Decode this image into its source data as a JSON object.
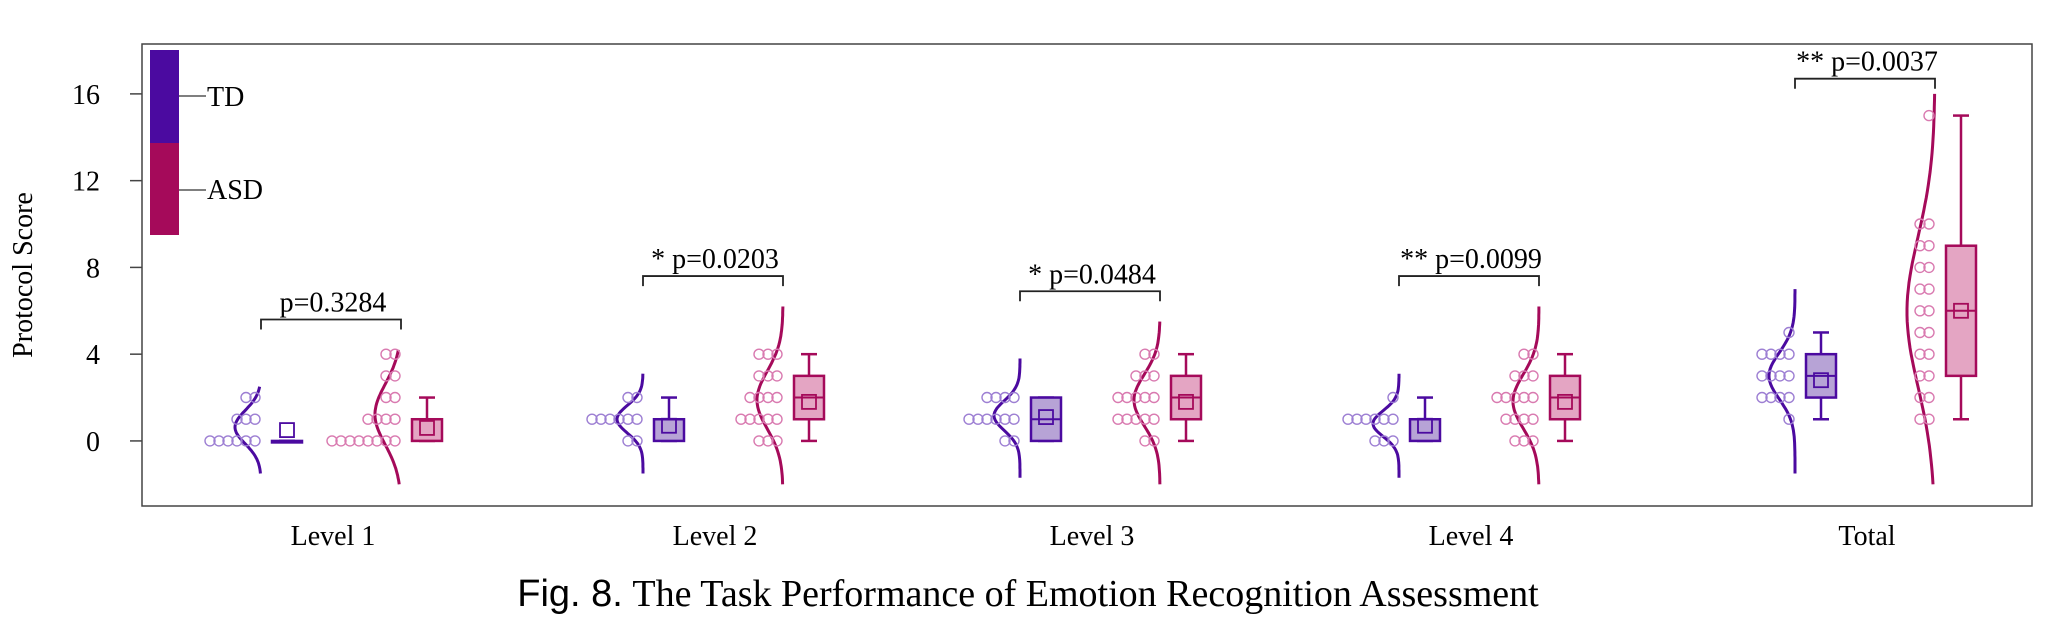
{
  "colors": {
    "td": "#4b0aa0",
    "asd": "#a50a5a",
    "td_fill": "#b7a3d6",
    "asd_fill": "#e4a5c3",
    "td_point": "#9d7fd3",
    "asd_point": "#d97ab0"
  },
  "caption": {
    "label": "Fig. 8.",
    "title": "The Task Performance of Emotion Recognition Assessment"
  },
  "chart_data": {
    "type": "box-violin",
    "ylabel": "Protocol Score",
    "xlabel": "",
    "ylim": [
      -3,
      18.3
    ],
    "yticks": [
      0,
      4,
      8,
      12,
      16
    ],
    "legend": {
      "placement": "top-left",
      "entries": [
        "TD",
        "ASD"
      ]
    },
    "grid": false,
    "categories": [
      "Level 1",
      "Level 2",
      "Level 3",
      "Level 4",
      "Total"
    ],
    "significance": [
      "p=0.3284",
      "* p=0.0203",
      "* p=0.0484",
      "** p=0.0099",
      "** p=0.0037"
    ],
    "series": [
      {
        "name": "TD",
        "boxes": [
          {
            "min": 0,
            "q1": 0,
            "median": 0,
            "q3": 0,
            "max": 0,
            "mean": 0.5
          },
          {
            "min": 0,
            "q1": 0,
            "median": 1,
            "q3": 1,
            "max": 2,
            "mean": 0.7
          },
          {
            "min": 0,
            "q1": 0,
            "median": 1,
            "q3": 2,
            "max": 2,
            "mean": 1.1
          },
          {
            "min": 0,
            "q1": 0,
            "median": 1,
            "q3": 1,
            "max": 2,
            "mean": 0.7
          },
          {
            "min": 1,
            "q1": 2,
            "median": 3,
            "q3": 4,
            "max": 5,
            "mean": 2.8
          }
        ],
        "points": [
          [
            0,
            0,
            0,
            0,
            0,
            0,
            1,
            1,
            1,
            2,
            2
          ],
          [
            0,
            0,
            1,
            1,
            1,
            1,
            1,
            1,
            2,
            2
          ],
          [
            0,
            0,
            1,
            1,
            1,
            1,
            1,
            1,
            2,
            2,
            2,
            2
          ],
          [
            0,
            0,
            0,
            1,
            1,
            1,
            1,
            1,
            1,
            2
          ],
          [
            1,
            2,
            2,
            2,
            2,
            3,
            3,
            3,
            3,
            4,
            4,
            4,
            4,
            5
          ]
        ],
        "density_range": [
          [
            -1.5,
            2.5
          ],
          [
            -1.5,
            3.1
          ],
          [
            -1.7,
            3.8
          ],
          [
            -1.7,
            3.1
          ],
          [
            -1.5,
            7
          ]
        ]
      },
      {
        "name": "ASD",
        "boxes": [
          {
            "min": 0,
            "q1": 0,
            "median": 0,
            "q3": 1,
            "max": 2,
            "mean": 0.6
          },
          {
            "min": 0,
            "q1": 1,
            "median": 2,
            "q3": 3,
            "max": 4,
            "mean": 1.8
          },
          {
            "min": 0,
            "q1": 1,
            "median": 2,
            "q3": 3,
            "max": 4,
            "mean": 1.8
          },
          {
            "min": 0,
            "q1": 1,
            "median": 2,
            "q3": 3,
            "max": 4,
            "mean": 1.8
          },
          {
            "min": 1,
            "q1": 3,
            "median": 6,
            "q3": 9,
            "max": 15,
            "mean": 6
          }
        ],
        "points": [
          [
            0,
            0,
            0,
            0,
            0,
            0,
            0,
            0,
            1,
            1,
            1,
            1,
            2,
            2,
            3,
            3,
            4,
            4
          ],
          [
            0,
            0,
            0,
            1,
            1,
            1,
            1,
            1,
            2,
            2,
            2,
            2,
            3,
            3,
            3,
            4,
            4,
            4
          ],
          [
            0,
            0,
            1,
            1,
            1,
            1,
            1,
            2,
            2,
            2,
            2,
            2,
            3,
            3,
            3,
            4,
            4
          ],
          [
            0,
            0,
            0,
            1,
            1,
            1,
            1,
            2,
            2,
            2,
            2,
            2,
            3,
            3,
            3,
            4,
            4
          ],
          [
            1,
            1,
            2,
            2,
            3,
            3,
            4,
            4,
            5,
            5,
            6,
            6,
            7,
            7,
            8,
            8,
            9,
            9,
            10,
            10,
            15
          ]
        ],
        "density_range": [
          [
            -2,
            4.2
          ],
          [
            -2,
            6.2
          ],
          [
            -2,
            5.5
          ],
          [
            -2,
            6.2
          ],
          [
            -2,
            16
          ]
        ]
      }
    ]
  }
}
